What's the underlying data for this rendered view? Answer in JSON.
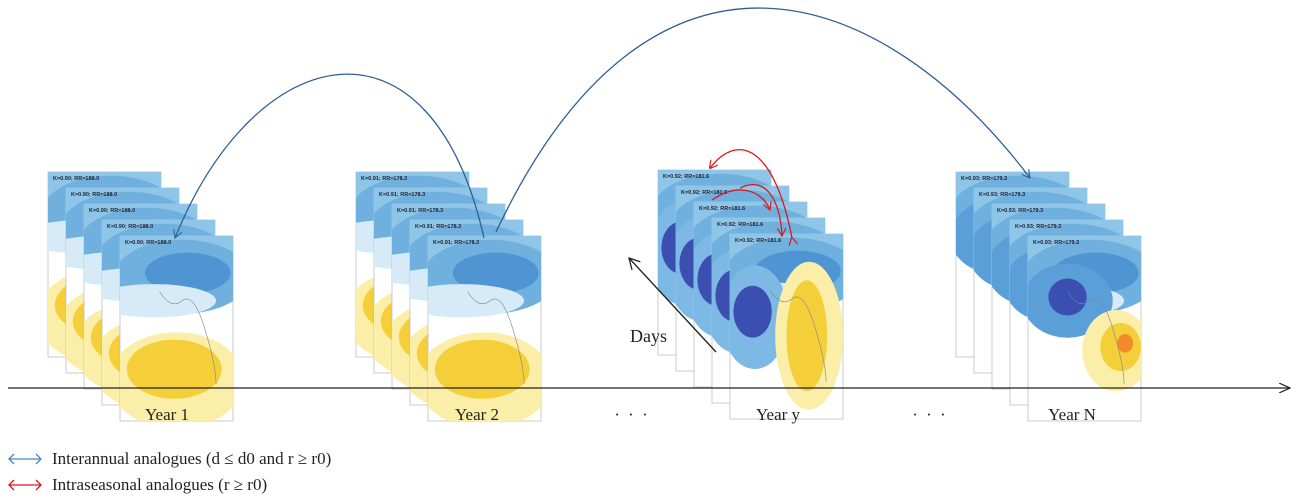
{
  "years": [
    {
      "label": "Year 1",
      "frame_label": "K=0.90; RR=188.0",
      "stack_size": 5,
      "pattern": "yellow-south"
    },
    {
      "label": "Year 2",
      "frame_label": "K=0.91; RR=178.3",
      "stack_size": 5,
      "pattern": "yellow-south"
    },
    {
      "label": "Year y",
      "frame_label": "K=0.92; RR=181.6",
      "stack_size": 5,
      "pattern": "dipole"
    },
    {
      "label": "Year N",
      "frame_label": "K=0.93; RR=179.3",
      "stack_size": 5,
      "pattern": "east-yellow"
    }
  ],
  "ellipsis": "· · ·",
  "days_label": "Days",
  "legend": [
    {
      "color": "#4a86c5",
      "text": "Interannual analogues (d ≤ d0 and r ≥ r0)"
    },
    {
      "color": "#d7191c",
      "text": "Intraseasonal analogues (r ≥ r0)"
    }
  ],
  "colors": {
    "interannual_arc": "#2f5f92",
    "intraseasonal_arc": "#d7191c",
    "axis": "#231f20"
  }
}
